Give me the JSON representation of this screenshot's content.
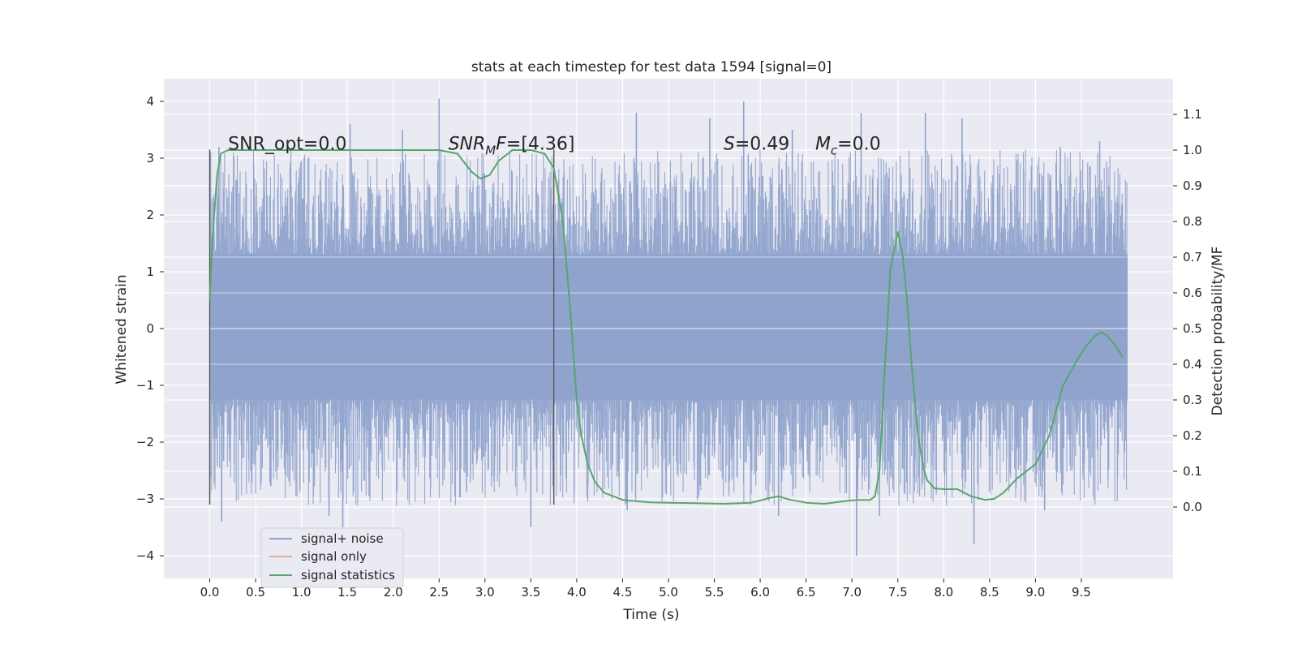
{
  "chart_data": {
    "type": "line",
    "title": "stats at each timestep for test data 1594 [signal=0]",
    "xlabel": "Time (s)",
    "ylabel": "Whitened strain",
    "y2label": "Detection probability/MF",
    "xlim": [
      -0.5,
      10.5
    ],
    "ylim": [
      -4.4,
      4.4
    ],
    "y2lim": [
      -0.2,
      1.2
    ],
    "x_ticks": [
      0.0,
      0.5,
      1.0,
      1.5,
      2.0,
      2.5,
      3.0,
      3.5,
      4.0,
      4.5,
      5.0,
      5.5,
      6.0,
      6.5,
      7.0,
      7.5,
      8.0,
      8.5,
      9.0,
      9.5
    ],
    "x_tick_labels": [
      "0.0",
      "0.5",
      "1.0",
      "1.5",
      "2.0",
      "2.5",
      "3.0",
      "3.5",
      "4.0",
      "4.5",
      "5.0",
      "5.5",
      "6.0",
      "6.5",
      "7.0",
      "7.5",
      "8.0",
      "8.5",
      "9.0",
      "9.5"
    ],
    "y_ticks": [
      -4,
      -3,
      -2,
      -1,
      0,
      1,
      2,
      3,
      4
    ],
    "y_tick_labels": [
      "−4",
      "−3",
      "−2",
      "−1",
      "0",
      "1",
      "2",
      "3",
      "4"
    ],
    "y2_ticks": [
      0.0,
      0.1,
      0.2,
      0.3,
      0.4,
      0.5,
      0.6,
      0.7,
      0.8,
      0.9,
      1.0,
      1.1
    ],
    "y2_tick_labels": [
      "0.0",
      "0.1",
      "0.2",
      "0.3",
      "0.4",
      "0.5",
      "0.6",
      "0.7",
      "0.8",
      "0.9",
      "1.0",
      "1.1"
    ],
    "grid": true,
    "legend_position": "lower-left",
    "annotations": [
      {
        "x": 0.2,
        "y": 3.15,
        "parts": [
          {
            "t": "SNR_opt=0.0"
          }
        ]
      },
      {
        "x": 2.6,
        "y": 3.15,
        "parts": [
          {
            "t": "SNR",
            "it": true
          },
          {
            "t": "M",
            "it": true,
            "sub": true
          },
          {
            "t": "F",
            "it": true
          },
          {
            "t": "=[4.36]"
          }
        ]
      },
      {
        "x": 5.6,
        "y": 3.15,
        "parts": [
          {
            "t": "S",
            "it": true
          },
          {
            "t": "=0.49"
          }
        ]
      },
      {
        "x": 6.6,
        "y": 3.15,
        "parts": [
          {
            "t": "M",
            "it": true
          },
          {
            "t": "c",
            "it": true,
            "sub": true
          },
          {
            "t": "=0.0"
          }
        ]
      }
    ],
    "vlines": [
      {
        "x": 0.0,
        "y": [
          -3.1,
          3.15
        ]
      },
      {
        "x": 3.75,
        "y": [
          -3.1,
          3.15
        ]
      }
    ],
    "series": [
      {
        "name": "signal+ noise",
        "color": "#8fa3cc",
        "x_range": [
          0.0,
          10.0
        ],
        "envelope": {
          "low_core": -1.25,
          "high_core": 1.3,
          "low_peak": -4.0,
          "high_peak": 4.05
        },
        "peaks": [
          {
            "x": 0.1,
            "y": 3.2
          },
          {
            "x": 0.13,
            "y": -3.4
          },
          {
            "x": 1.3,
            "y": -3.3
          },
          {
            "x": 1.45,
            "y": -3.5
          },
          {
            "x": 1.53,
            "y": 3.6
          },
          {
            "x": 2.1,
            "y": 3.5
          },
          {
            "x": 2.5,
            "y": 4.05
          },
          {
            "x": 3.5,
            "y": -3.5
          },
          {
            "x": 4.55,
            "y": -3.2
          },
          {
            "x": 4.65,
            "y": 3.8
          },
          {
            "x": 5.45,
            "y": 3.7
          },
          {
            "x": 5.82,
            "y": 4.0
          },
          {
            "x": 6.2,
            "y": -3.3
          },
          {
            "x": 6.35,
            "y": 3.5
          },
          {
            "x": 7.05,
            "y": -4.0
          },
          {
            "x": 7.1,
            "y": 3.8
          },
          {
            "x": 7.3,
            "y": -3.3
          },
          {
            "x": 7.8,
            "y": 3.8
          },
          {
            "x": 8.2,
            "y": 3.7
          },
          {
            "x": 8.33,
            "y": -3.8
          },
          {
            "x": 9.1,
            "y": -3.2
          },
          {
            "x": 9.27,
            "y": 3.2
          },
          {
            "x": 9.7,
            "y": 3.3
          }
        ]
      },
      {
        "name": "signal only",
        "color": "#dd8452",
        "x": [],
        "y": []
      },
      {
        "name": "signal statistics",
        "color": "#55a868",
        "axis": "right",
        "x": [
          0.0,
          0.03,
          0.08,
          0.12,
          0.2,
          0.5,
          1.0,
          1.5,
          2.0,
          2.5,
          2.7,
          2.85,
          2.95,
          3.05,
          3.15,
          3.3,
          3.5,
          3.65,
          3.75,
          3.85,
          3.93,
          4.0,
          4.05,
          4.12,
          4.2,
          4.3,
          4.5,
          4.8,
          5.0,
          5.3,
          5.6,
          5.9,
          6.1,
          6.2,
          6.3,
          6.5,
          6.7,
          6.9,
          7.05,
          7.2,
          7.25,
          7.3,
          7.35,
          7.42,
          7.5,
          7.55,
          7.6,
          7.65,
          7.72,
          7.78,
          7.82,
          7.9,
          8.0,
          8.15,
          8.3,
          8.45,
          8.55,
          8.65,
          8.8,
          9.0,
          9.15,
          9.3,
          9.45,
          9.55,
          9.65,
          9.72,
          9.78,
          9.85,
          9.95
        ],
        "y": [
          0.58,
          0.75,
          0.93,
          0.99,
          1.0,
          1.0,
          1.0,
          1.0,
          1.0,
          1.0,
          0.99,
          0.94,
          0.92,
          0.93,
          0.97,
          1.0,
          1.0,
          0.99,
          0.95,
          0.8,
          0.55,
          0.3,
          0.2,
          0.12,
          0.07,
          0.04,
          0.02,
          0.013,
          0.012,
          0.011,
          0.009,
          0.012,
          0.025,
          0.03,
          0.022,
          0.012,
          0.009,
          0.016,
          0.02,
          0.02,
          0.03,
          0.1,
          0.35,
          0.67,
          0.77,
          0.71,
          0.58,
          0.4,
          0.2,
          0.11,
          0.075,
          0.052,
          0.05,
          0.05,
          0.03,
          0.02,
          0.023,
          0.04,
          0.08,
          0.12,
          0.2,
          0.34,
          0.41,
          0.45,
          0.48,
          0.49,
          0.48,
          0.46,
          0.42
        ]
      }
    ]
  }
}
